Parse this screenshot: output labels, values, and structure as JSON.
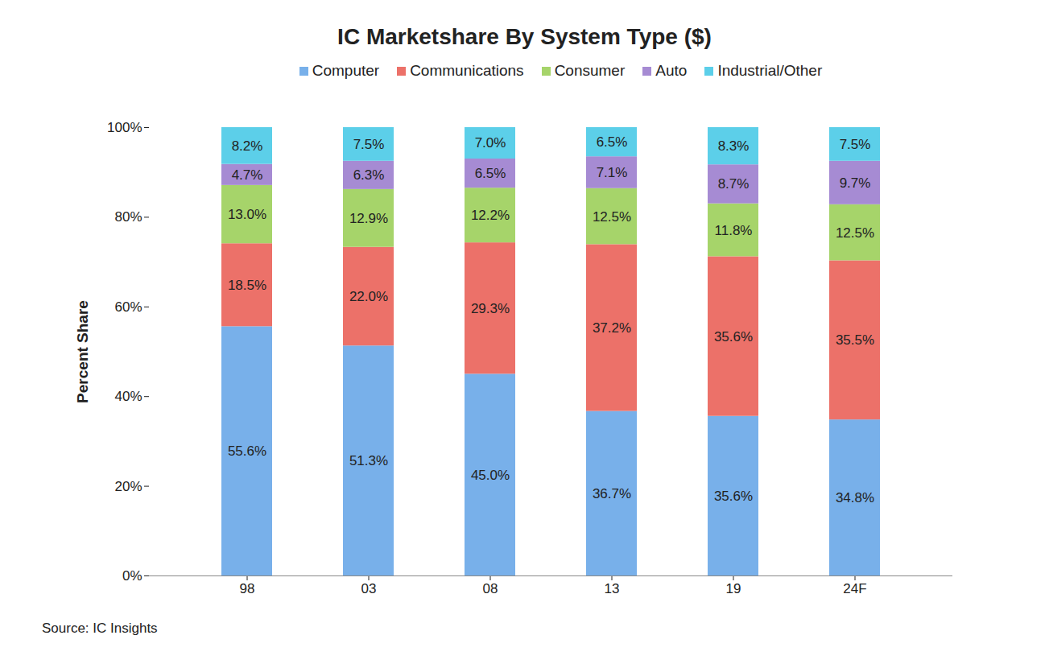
{
  "chart_data": {
    "type": "bar",
    "stacked": true,
    "title": "IC Marketshare By System Type ($)",
    "y_label": "Percent Share",
    "caption": "Source: IC Insights",
    "categories": [
      "98",
      "03",
      "08",
      "13",
      "19",
      "24F"
    ],
    "series": [
      {
        "name": "Computer",
        "color": "#78b0ea",
        "values": [
          55.6,
          51.3,
          45.0,
          36.7,
          35.6,
          34.8
        ],
        "value_labels": [
          "55.6%",
          "51.3%",
          "45.0%",
          "36.7%",
          "35.6%",
          "34.8%"
        ]
      },
      {
        "name": "Communications",
        "color": "#ec7169",
        "values": [
          18.5,
          22.0,
          29.3,
          37.2,
          35.6,
          35.5
        ],
        "value_labels": [
          "18.5%",
          "22.0%",
          "29.3%",
          "37.2%",
          "35.6%",
          "35.5%"
        ]
      },
      {
        "name": "Consumer",
        "color": "#a6d46a",
        "values": [
          13.0,
          12.9,
          12.2,
          12.5,
          11.8,
          12.5
        ],
        "value_labels": [
          "13.0%",
          "12.9%",
          "12.2%",
          "12.5%",
          "11.8%",
          "12.5%"
        ]
      },
      {
        "name": "Auto",
        "color": "#a68bd3",
        "values": [
          4.7,
          6.3,
          6.5,
          7.1,
          8.7,
          9.7
        ],
        "value_labels": [
          "4.7%",
          "6.3%",
          "6.5%",
          "7.1%",
          "8.7%",
          "9.7%"
        ]
      },
      {
        "name": "Industrial/Other",
        "color": "#5ccfe9",
        "values": [
          8.2,
          7.5,
          7.0,
          6.5,
          8.3,
          7.5
        ],
        "value_labels": [
          "8.2%",
          "7.5%",
          "7.0%",
          "6.5%",
          "8.3%",
          "7.5%"
        ]
      }
    ],
    "ylim": [
      0,
      100
    ],
    "yticks": [
      {
        "value": 0,
        "label": "0%"
      },
      {
        "value": 20,
        "label": "20%"
      },
      {
        "value": 40,
        "label": "40%"
      },
      {
        "value": 60,
        "label": "60%"
      },
      {
        "value": 80,
        "label": "80%"
      },
      {
        "value": 100,
        "label": "100%"
      }
    ],
    "grid": false,
    "legend": "top",
    "data_labels": true
  }
}
